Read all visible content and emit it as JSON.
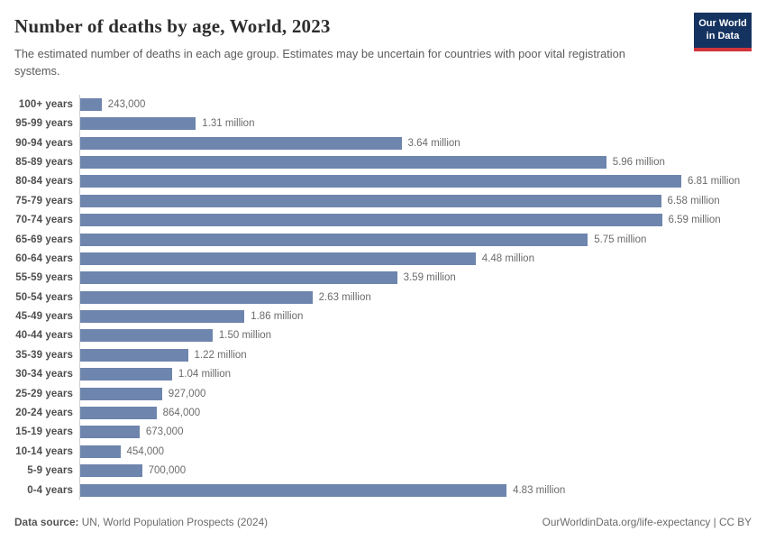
{
  "header": {
    "title": "Number of deaths by age, World, 2023",
    "subtitle": "The estimated number of deaths in each age group. Estimates may be uncertain for countries with poor vital registration systems.",
    "logo": {
      "line1": "Our World",
      "line2": "in Data"
    }
  },
  "chart_data": {
    "type": "bar",
    "orientation": "horizontal",
    "title": "Number of deaths by age, World, 2023",
    "xlabel": "",
    "ylabel": "",
    "xlim": [
      0,
      7000000
    ],
    "grid": false,
    "bar_color": "#6e85ad",
    "axis_line_color": "#cfcfcf",
    "categories": [
      "100+ years",
      "95-99 years",
      "90-94 years",
      "85-89 years",
      "80-84 years",
      "75-79 years",
      "70-74 years",
      "65-69 years",
      "60-64 years",
      "55-59 years",
      "50-54 years",
      "45-49 years",
      "40-44 years",
      "35-39 years",
      "30-34 years",
      "25-29 years",
      "20-24 years",
      "15-19 years",
      "10-14 years",
      "5-9 years",
      "0-4 years"
    ],
    "values": [
      243000,
      1310000,
      3640000,
      5960000,
      6810000,
      6580000,
      6590000,
      5750000,
      4480000,
      3590000,
      2630000,
      1860000,
      1500000,
      1220000,
      1040000,
      927000,
      864000,
      673000,
      454000,
      700000,
      4830000
    ],
    "value_labels": [
      "243,000",
      "1.31 million",
      "3.64 million",
      "5.96 million",
      "6.81 million",
      "6.58 million",
      "6.59 million",
      "5.75 million",
      "4.48 million",
      "3.59 million",
      "2.63 million",
      "1.86 million",
      "1.50 million",
      "1.22 million",
      "1.04 million",
      "927,000",
      "864,000",
      "673,000",
      "454,000",
      "700,000",
      "4.83 million"
    ]
  },
  "footer": {
    "datasource_label": "Data source:",
    "datasource_value": "UN, World Population Prospects (2024)",
    "credit": "OurWorldinData.org/life-expectancy | CC BY"
  }
}
